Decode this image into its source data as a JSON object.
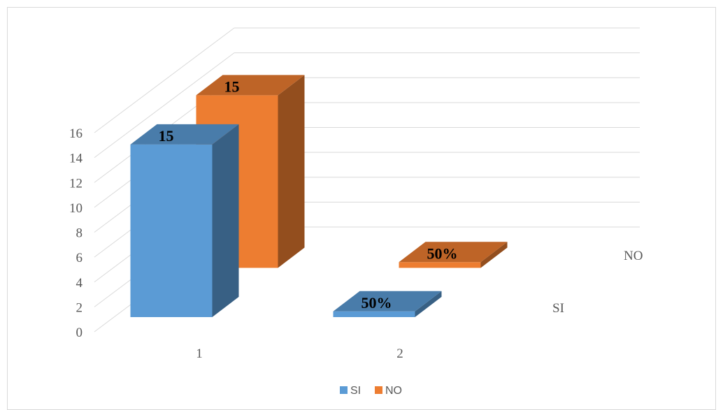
{
  "chart_data": {
    "type": "bar",
    "categories": [
      "1",
      "2"
    ],
    "series": [
      {
        "name": "SI",
        "values": [
          15,
          0.5
        ],
        "data_labels": [
          "15",
          "50%"
        ],
        "color": "#5b9bd5"
      },
      {
        "name": "NO",
        "values": [
          15,
          0.5
        ],
        "data_labels": [
          "15",
          "50%"
        ],
        "color": "#ed7d31"
      }
    ],
    "ylim": [
      0,
      16
    ],
    "y_ticks": [
      "0",
      "2",
      "4",
      "6",
      "8",
      "10",
      "12",
      "14",
      "16"
    ],
    "series_axis_labels": [
      "SI",
      "NO"
    ],
    "grid": true,
    "legend": "bottom",
    "legend_entries": [
      "SI",
      "NO"
    ]
  }
}
